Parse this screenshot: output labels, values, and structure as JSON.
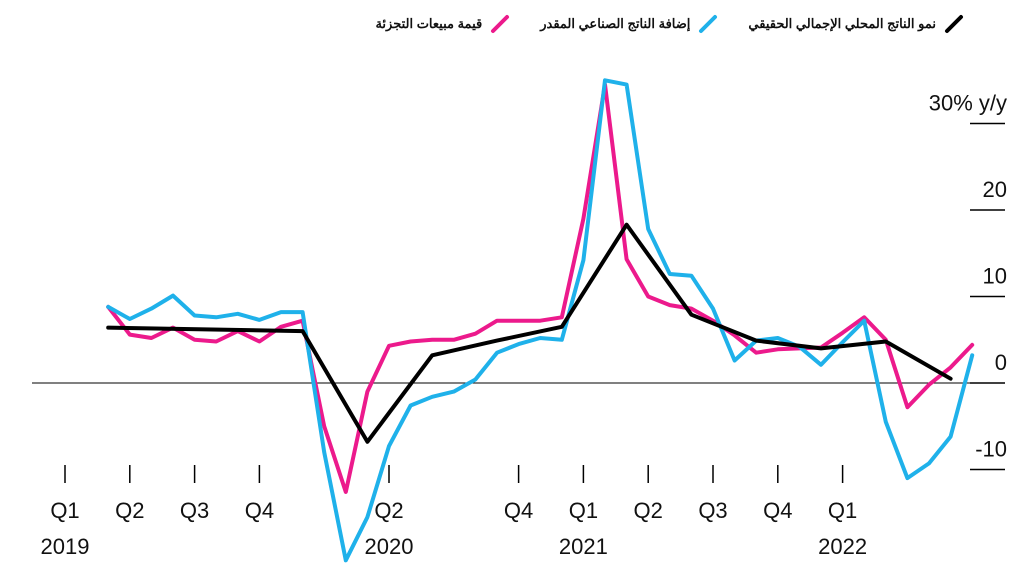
{
  "chart_data": {
    "type": "line",
    "ylabel_unit": "y/y",
    "ylim": [
      -11,
      33
    ],
    "y_ticks": [
      {
        "value": 30,
        "label": "30% y/y"
      },
      {
        "value": 20,
        "label": "20"
      },
      {
        "value": 10,
        "label": "10"
      },
      {
        "value": 0,
        "label": "0"
      },
      {
        "value": -10,
        "label": "-10"
      }
    ],
    "x_ticks": [
      {
        "idx": 0,
        "label": "Q1",
        "year": "2019"
      },
      {
        "idx": 3,
        "label": "Q2"
      },
      {
        "idx": 6,
        "label": "Q3"
      },
      {
        "idx": 9,
        "label": "Q4"
      },
      {
        "idx": 15,
        "label": "Q2",
        "year": "2020"
      },
      {
        "idx": 21,
        "label": "Q4"
      },
      {
        "idx": 24,
        "label": "Q1",
        "year": "2021"
      },
      {
        "idx": 27,
        "label": "Q2"
      },
      {
        "idx": 30,
        "label": "Q3"
      },
      {
        "idx": 33,
        "label": "Q4"
      },
      {
        "idx": 36,
        "label": "Q1",
        "year": "2022"
      }
    ],
    "series": [
      {
        "name": "نمو الناتج المحلي الإجمالي الحقيقي",
        "color": "#000000",
        "points": [
          [
            2,
            6.4
          ],
          [
            11,
            6.0
          ],
          [
            14,
            -6.8
          ],
          [
            17,
            3.2
          ],
          [
            20,
            4.9
          ],
          [
            23,
            6.5
          ],
          [
            26,
            18.3
          ],
          [
            29,
            7.9
          ],
          [
            32,
            4.9
          ],
          [
            35,
            4.0
          ],
          [
            38,
            4.8
          ],
          [
            41,
            0.5
          ]
        ]
      },
      {
        "name": "إضافة الناتج الصناعي المقدر",
        "color": "#1fb1ea",
        "points": [
          [
            2,
            8.8
          ],
          [
            3,
            7.4
          ],
          [
            4,
            8.6
          ],
          [
            5,
            10.1
          ],
          [
            6,
            7.8
          ],
          [
            7,
            7.6
          ],
          [
            8,
            8.0
          ],
          [
            9,
            7.3
          ],
          [
            10,
            8.2
          ],
          [
            11,
            8.2
          ],
          [
            12,
            -8.0
          ],
          [
            13,
            -20.5
          ],
          [
            14,
            -15.5
          ],
          [
            15,
            -7.3
          ],
          [
            16,
            -2.6
          ],
          [
            17,
            -1.6
          ],
          [
            18,
            -1.0
          ],
          [
            19,
            0.4
          ],
          [
            20,
            3.5
          ],
          [
            21,
            4.5
          ],
          [
            22,
            5.2
          ],
          [
            23,
            5.0
          ],
          [
            24,
            14.2
          ],
          [
            25,
            35.0
          ],
          [
            26,
            34.5
          ],
          [
            27,
            17.8
          ],
          [
            28,
            12.6
          ],
          [
            29,
            12.4
          ],
          [
            30,
            8.6
          ],
          [
            31,
            2.6
          ],
          [
            32,
            4.9
          ],
          [
            33,
            5.2
          ],
          [
            34,
            4.2
          ],
          [
            35,
            2.1
          ],
          [
            36,
            4.7
          ],
          [
            37,
            7.2
          ],
          [
            38,
            -4.5
          ],
          [
            39,
            -11.0
          ],
          [
            40,
            -9.3
          ],
          [
            41,
            -6.2
          ],
          [
            42,
            3.2
          ]
        ]
      },
      {
        "name": "قيمة مبيعات التجزئة",
        "color": "#ec1a8c",
        "points": [
          [
            2,
            8.8
          ],
          [
            3,
            5.6
          ],
          [
            4,
            5.2
          ],
          [
            5,
            6.4
          ],
          [
            6,
            5.0
          ],
          [
            7,
            4.8
          ],
          [
            8,
            6.0
          ],
          [
            9,
            4.8
          ],
          [
            10,
            6.5
          ],
          [
            11,
            7.2
          ],
          [
            12,
            -5.0
          ],
          [
            13,
            -12.6
          ],
          [
            14,
            -1.0
          ],
          [
            15,
            4.3
          ],
          [
            16,
            4.8
          ],
          [
            17,
            5.0
          ],
          [
            18,
            5.0
          ],
          [
            19,
            5.7
          ],
          [
            20,
            7.2
          ],
          [
            21,
            7.2
          ],
          [
            22,
            7.2
          ],
          [
            23,
            7.6
          ],
          [
            24,
            19.0
          ],
          [
            25,
            34.5
          ],
          [
            26,
            14.3
          ],
          [
            27,
            10.0
          ],
          [
            28,
            9.0
          ],
          [
            29,
            8.6
          ],
          [
            30,
            7.2
          ],
          [
            31,
            5.5
          ],
          [
            32,
            3.5
          ],
          [
            33,
            3.9
          ],
          [
            34,
            4.0
          ],
          [
            35,
            4.1
          ],
          [
            36,
            5.8
          ],
          [
            37,
            7.6
          ],
          [
            38,
            5.0
          ],
          [
            39,
            -2.8
          ],
          [
            40,
            -0.2
          ],
          [
            41,
            1.8
          ],
          [
            42,
            4.4
          ]
        ]
      }
    ],
    "zero_line": true,
    "legend_position": "top"
  }
}
